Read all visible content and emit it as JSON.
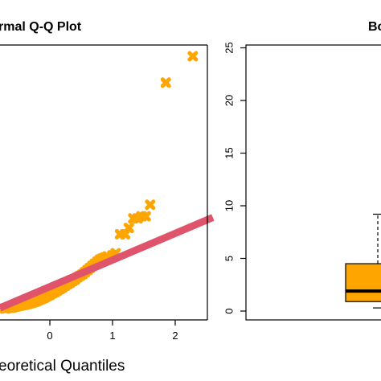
{
  "chart_data": [
    {
      "type": "scatter",
      "title": "Normal Q-Q Plot",
      "title_visible": "rmal Q-Q Plot",
      "xlabel": "Theoretical Quantiles",
      "xlabel_visible": "eoretical Quantiles",
      "x_ticks": [
        "0",
        "1",
        "2"
      ],
      "xlim": [
        -0.75,
        2.5
      ],
      "ylim": [
        -0.5,
        26
      ],
      "point_color": "#FFA500",
      "line_color": "#DF536B",
      "reference_line": {
        "x1": -0.8,
        "y1": 0.6,
        "x2": 2.6,
        "y2": 9.2
      },
      "series": [
        {
          "x": [
            -0.72,
            -0.7,
            -0.68,
            -0.66,
            -0.64,
            -0.62,
            -0.6,
            -0.58,
            -0.56,
            -0.54,
            -0.52,
            -0.5,
            -0.48,
            -0.46,
            -0.44,
            -0.42,
            -0.4,
            -0.38,
            -0.36,
            -0.34,
            -0.32,
            -0.3,
            -0.28,
            -0.26,
            -0.24,
            -0.22,
            -0.2,
            -0.18,
            -0.16,
            -0.14,
            -0.12,
            -0.1,
            -0.08,
            -0.06,
            -0.04,
            -0.02,
            0.0,
            0.04,
            0.08,
            0.12,
            0.16,
            0.2,
            0.24,
            0.28,
            0.32,
            0.36,
            0.4,
            0.44,
            0.48,
            0.52,
            0.56,
            0.6,
            0.64,
            0.68,
            0.72,
            0.76,
            0.8,
            0.84,
            0.88,
            0.92,
            1.0,
            1.05,
            1.12,
            1.2,
            1.26,
            1.33,
            1.4,
            1.46,
            1.53,
            1.6,
            1.85,
            2.28
          ],
          "y": [
            0.55,
            0.55,
            0.6,
            0.6,
            0.62,
            0.65,
            0.65,
            0.7,
            0.72,
            0.75,
            0.78,
            0.8,
            0.82,
            0.85,
            0.88,
            0.9,
            0.92,
            0.95,
            0.98,
            1.0,
            1.05,
            1.1,
            1.12,
            1.15,
            1.2,
            1.25,
            1.3,
            1.35,
            1.4,
            1.45,
            1.5,
            1.55,
            1.6,
            1.7,
            1.75,
            1.8,
            1.85,
            2.0,
            2.1,
            2.25,
            2.4,
            2.55,
            2.7,
            2.85,
            3.0,
            3.15,
            3.3,
            3.5,
            3.65,
            3.8,
            4.0,
            4.2,
            4.4,
            4.6,
            4.8,
            5.0,
            5.2,
            5.3,
            5.4,
            5.5,
            5.6,
            5.8,
            7.6,
            7.6,
            8.2,
            9.1,
            9.1,
            9.3,
            9.3,
            10.4,
            22.0,
            24.5
          ]
        }
      ]
    },
    {
      "type": "box",
      "title": "Box Plot",
      "title_visible": "Bo",
      "y_ticks": [
        "0",
        "5",
        "10",
        "15",
        "20",
        "25"
      ],
      "ylim": [
        -0.5,
        26
      ],
      "box_color": "#FFA500",
      "median_color": "#000000",
      "stats": {
        "q1": 0.9,
        "median": 1.9,
        "q3": 4.5,
        "whisker_high": 9.2,
        "whisker_low": 0.3
      }
    }
  ]
}
